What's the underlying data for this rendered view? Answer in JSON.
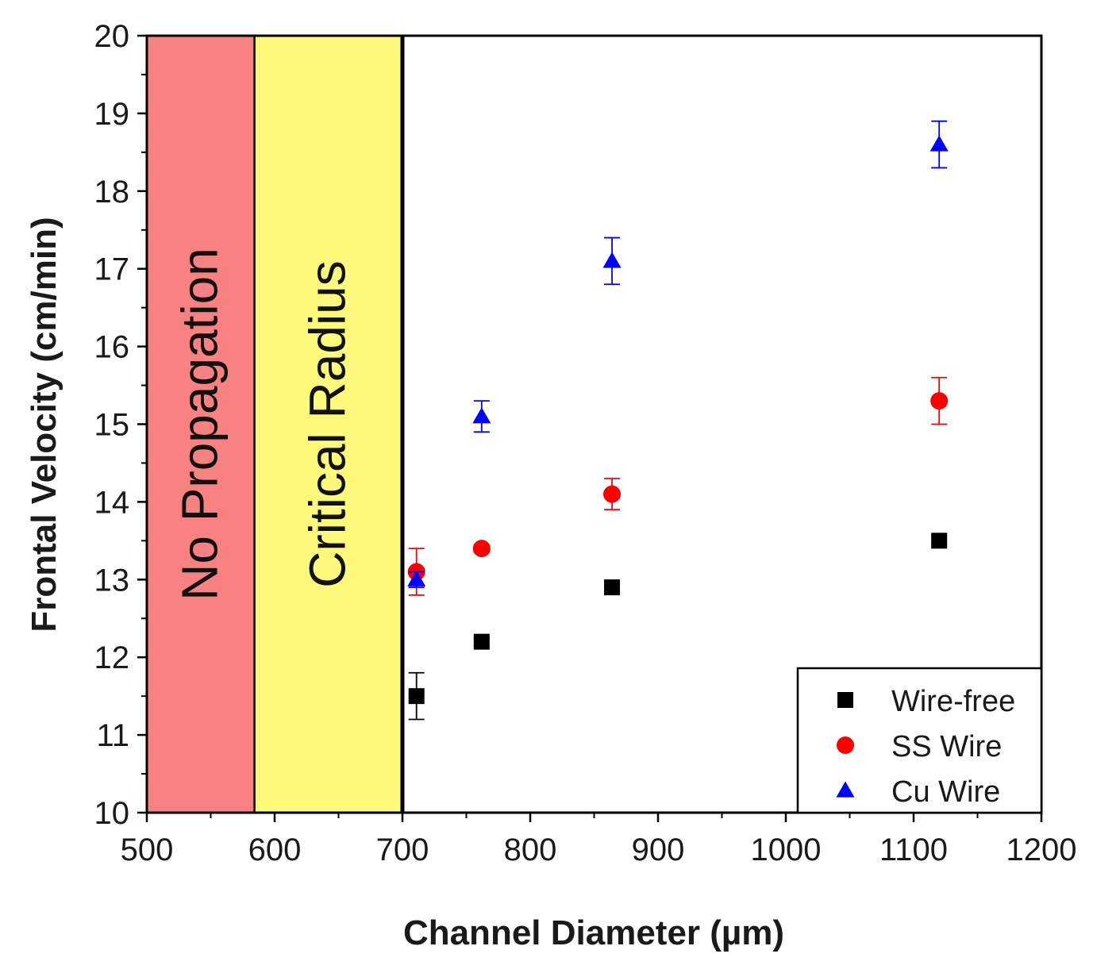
{
  "chart_data": {
    "type": "scatter",
    "title": "",
    "xlabel": "Channel Diameter (µm)",
    "ylabel": "Frontal Velocity (cm/min)",
    "xlim": [
      500,
      1200
    ],
    "ylim": [
      10,
      20
    ],
    "x_ticks": [
      500,
      600,
      700,
      800,
      900,
      1000,
      1100,
      1200
    ],
    "y_ticks": [
      10,
      11,
      12,
      13,
      14,
      15,
      16,
      17,
      18,
      19,
      20
    ],
    "grid": false,
    "regions": [
      {
        "label": "No Propagation",
        "x_start": 500,
        "x_end": 585,
        "color": "#f88282"
      },
      {
        "label": "Critical Radius",
        "x_start": 585,
        "x_end": 700,
        "color": "#fdf97a"
      }
    ],
    "series": [
      {
        "name": "Wire-free",
        "marker": "square",
        "color": "#000000",
        "x": [
          711,
          762,
          864,
          1120
        ],
        "y": [
          11.5,
          12.2,
          12.9,
          13.5
        ],
        "error": [
          0.3,
          0.05,
          0.05,
          0.05
        ]
      },
      {
        "name": "SS Wire",
        "marker": "circle",
        "color": "#ff0000",
        "x": [
          711,
          762,
          864,
          1120
        ],
        "y": [
          13.1,
          13.4,
          14.1,
          15.3
        ],
        "error": [
          0.3,
          0.05,
          0.2,
          0.3
        ]
      },
      {
        "name": "Cu Wire",
        "marker": "triangle",
        "color": "#0000ff",
        "x": [
          711,
          762,
          864,
          1120
        ],
        "y": [
          13.0,
          15.1,
          17.1,
          18.6
        ],
        "error": [
          0.1,
          0.2,
          0.3,
          0.3
        ]
      }
    ],
    "legend": {
      "position": "bottom-right",
      "entries": [
        "Wire-free",
        "SS Wire",
        "Cu Wire"
      ]
    }
  }
}
